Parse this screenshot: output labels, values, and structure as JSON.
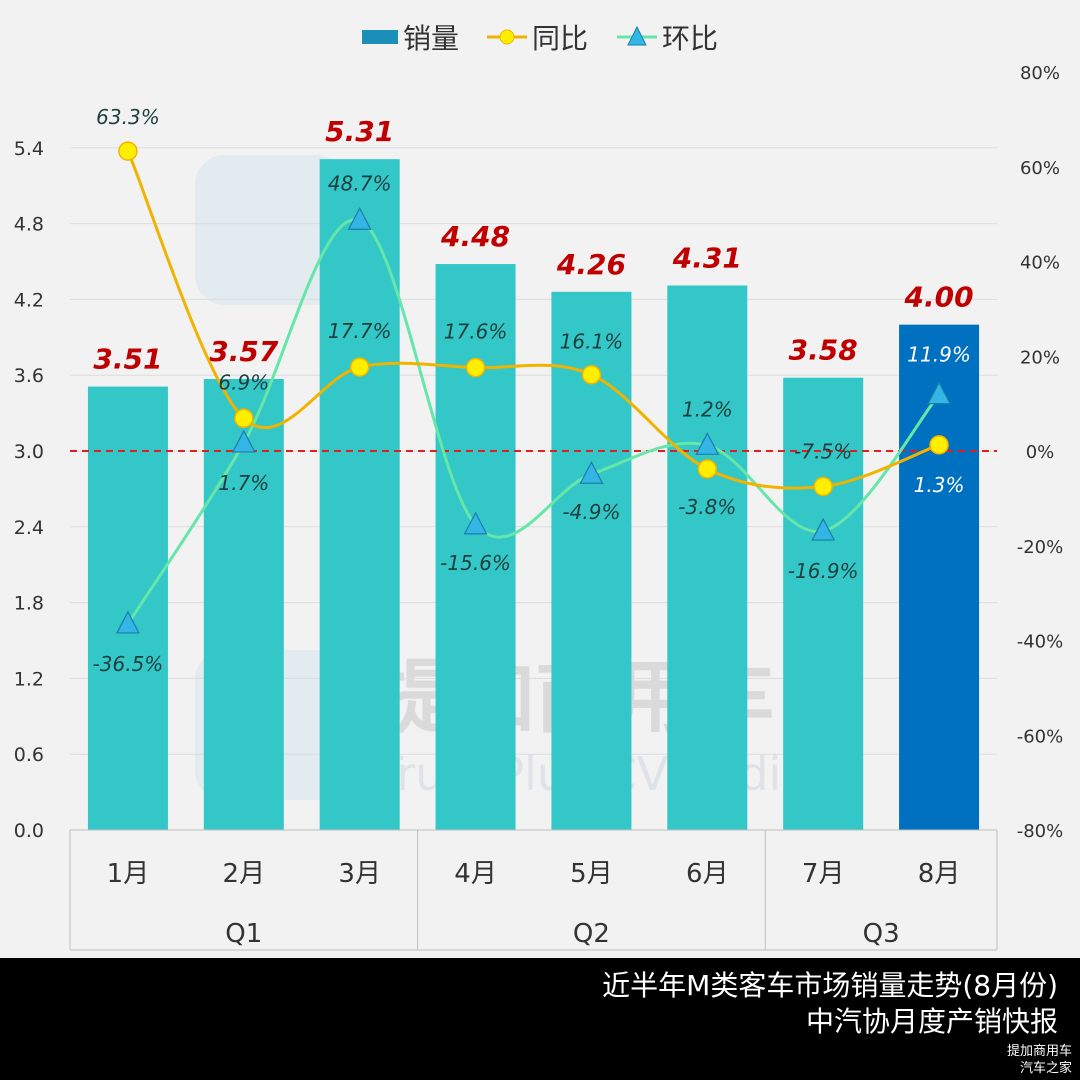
{
  "chart_data": {
    "type": "bar",
    "categories": [
      "1月",
      "2月",
      "3月",
      "4月",
      "5月",
      "6月",
      "7月",
      "8月"
    ],
    "groups": [
      {
        "label": "Q1",
        "span": 3
      },
      {
        "label": "Q2",
        "span": 3
      },
      {
        "label": "Q3",
        "span": 2
      }
    ],
    "legend": [
      "销量",
      "同比",
      "环比"
    ],
    "legend_placement": "top",
    "series": [
      {
        "name": "销量",
        "type": "bar",
        "axis": "left",
        "values": [
          3.51,
          3.57,
          5.31,
          4.48,
          4.26,
          4.31,
          3.58,
          4.0
        ],
        "labels": [
          "3.51",
          "3.57",
          "5.31",
          "4.48",
          "4.26",
          "4.31",
          "3.58",
          "4.00"
        ]
      },
      {
        "name": "同比",
        "type": "line",
        "axis": "right",
        "values": [
          63.3,
          6.9,
          17.7,
          17.6,
          16.1,
          -3.8,
          -7.5,
          1.3
        ],
        "labels": [
          "63.3%",
          "6.9%",
          "17.7%",
          "17.6%",
          "16.1%",
          "-3.8%",
          "-7.5%",
          "1.3%"
        ]
      },
      {
        "name": "环比",
        "type": "line",
        "axis": "right",
        "values": [
          -36.5,
          1.7,
          48.7,
          -15.6,
          -4.9,
          1.2,
          -16.9,
          11.9
        ],
        "labels": [
          "-36.5%",
          "1.7%",
          "48.7%",
          "-15.6%",
          "-4.9%",
          "1.2%",
          "-16.9%",
          "11.9%"
        ]
      }
    ],
    "left_axis": {
      "range": [
        0,
        6.0
      ],
      "ticks": [
        "0.0",
        "0.6",
        "1.2",
        "1.8",
        "2.4",
        "3.0",
        "3.6",
        "4.2",
        "4.8",
        "5.4"
      ]
    },
    "right_axis": {
      "range": [
        -80,
        80
      ],
      "ticks": [
        "-80%",
        "-60%",
        "-40%",
        "-20%",
        "0%",
        "20%",
        "40%",
        "60%",
        "80%"
      ]
    },
    "reference_line": {
      "value_percent": 0,
      "style": "dashed",
      "color": "#e02020"
    },
    "grid": true,
    "colors": {
      "bar": "#33c7c7",
      "bar_highlight": "#0070c0",
      "legend_bar": "#1a8fb8",
      "yoy": "#f0b400",
      "yoy_marker": "#ffee00",
      "mom": "#66e6a8",
      "mom_marker": "#33b5e5",
      "bar_label": "#c00000",
      "point_label": "#1f3f3f"
    }
  },
  "watermark": {
    "cn": "提加商用车",
    "en": "TruckPlus CVstudio"
  },
  "footer": {
    "line1": "近半年M类客车市场销量走势(8月份)",
    "line2": "中汽协月度产销快报",
    "mark1": "提加商用车",
    "mark2": "汽车之家"
  }
}
